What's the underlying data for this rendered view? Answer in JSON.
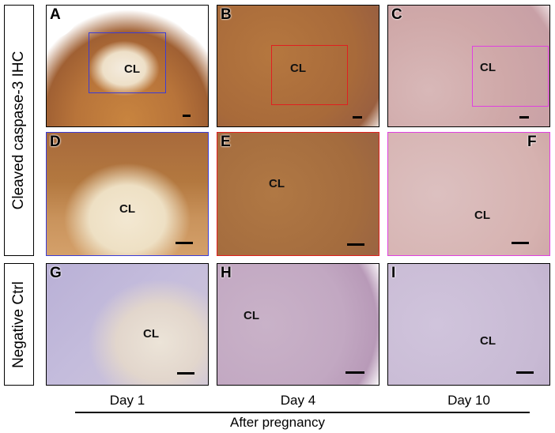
{
  "row_labels": {
    "ihc": "Cleaved caspase-3 IHC",
    "ctrl": "Negative Ctrl"
  },
  "panels": {
    "A": {
      "letter": "A",
      "cl": "CL"
    },
    "B": {
      "letter": "B",
      "cl": "CL"
    },
    "C": {
      "letter": "C",
      "cl": "CL"
    },
    "D": {
      "letter": "D",
      "cl": "CL"
    },
    "E": {
      "letter": "E",
      "cl": "CL"
    },
    "F": {
      "letter": "F",
      "cl": "CL"
    },
    "G": {
      "letter": "G",
      "cl": "CL"
    },
    "H": {
      "letter": "H",
      "cl": "CL"
    },
    "I": {
      "letter": "I",
      "cl": "CL"
    }
  },
  "columns": [
    "Day 1",
    "Day 4",
    "Day 10"
  ],
  "x_title": "After pregnancy",
  "colors": {
    "inset_day1": "#3b3bd6",
    "inset_day4": "#e01f1f",
    "inset_day10": "#e040e0",
    "brown_stain": "#a0602a",
    "hematoxylin": "#6a5aa8"
  }
}
